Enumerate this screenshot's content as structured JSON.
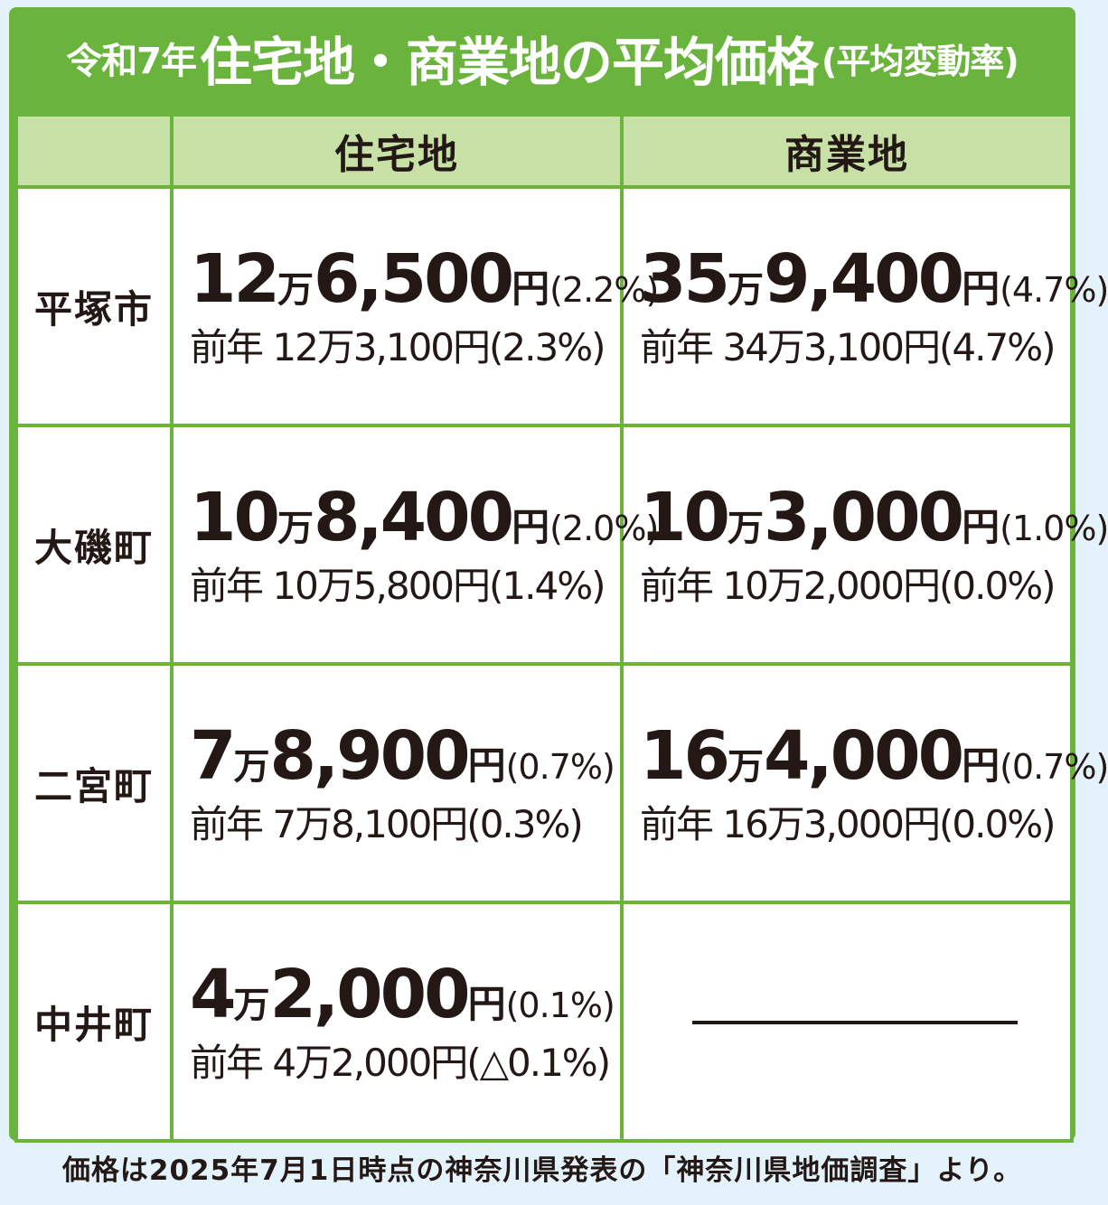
{
  "title": {
    "year": "令和7年",
    "main": "住宅地・商業地の平均価格",
    "sub": "(平均変動率)"
  },
  "columns": [
    "住宅地",
    "商業地"
  ],
  "rows": [
    {
      "region": "平塚市",
      "residential": {
        "man": "12",
        "rest": "6,500",
        "yen": "円",
        "rate": "(2.2%)",
        "previous": "前年 12万3,100円(2.3%)"
      },
      "commercial": {
        "man": "35",
        "rest": "9,400",
        "yen": "円",
        "rate": "(4.7%)",
        "previous": "前年 34万3,100円(4.7%)"
      }
    },
    {
      "region": "大磯町",
      "residential": {
        "man": "10",
        "rest": "8,400",
        "yen": "円",
        "rate": "(2.0%)",
        "previous": "前年 10万5,800円(1.4%)"
      },
      "commercial": {
        "man": "10",
        "rest": "3,000",
        "yen": "円",
        "rate": "(1.0%)",
        "previous": "前年 10万2,000円(0.0%)"
      }
    },
    {
      "region": "二宮町",
      "residential": {
        "man": "7",
        "rest": "8,900",
        "yen": "円",
        "rate": "(0.7%)",
        "previous": "前年 7万8,100円(0.3%)"
      },
      "commercial": {
        "man": "16",
        "rest": "4,000",
        "yen": "円",
        "rate": "(0.7%)",
        "previous": "前年 16万3,000円(0.0%)"
      }
    },
    {
      "region": "中井町",
      "residential": {
        "man": "4",
        "rest": "2,000",
        "yen": "円",
        "rate": "(0.1%)",
        "previous": "前年 4万2,000円(△0.1%)"
      },
      "commercial": null
    }
  ],
  "unit_man": "万",
  "footnote": "価格は2025年7月1日時点の神奈川県発表の「神奈川県地価調査」より。",
  "colors": {
    "frame_green": "#6ab43e",
    "header_green": "#c6e0a5",
    "background": "#e4f3fb",
    "text": "#231815"
  }
}
